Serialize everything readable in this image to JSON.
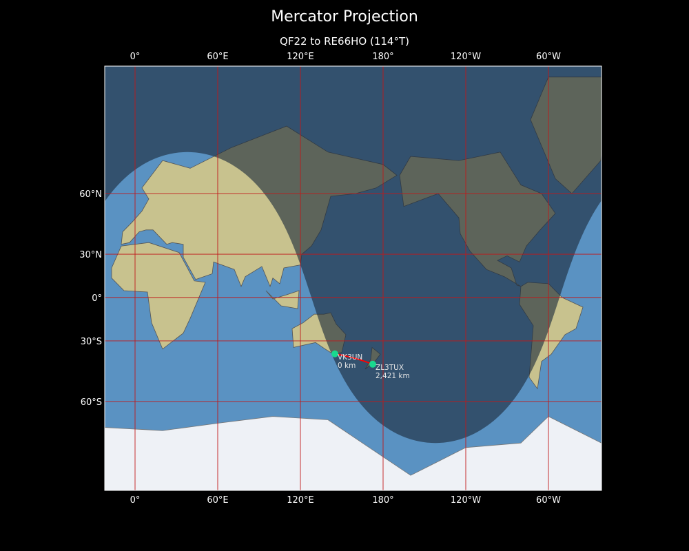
{
  "title": "Mercator Projection",
  "subtitle": "QF22 to RE66HO (114°T)",
  "lon_ticks": [
    {
      "lon": 0,
      "label": "0°"
    },
    {
      "lon": 60,
      "label": "60°E"
    },
    {
      "lon": 120,
      "label": "120°E"
    },
    {
      "lon": 180,
      "label": "180°"
    },
    {
      "lon": 240,
      "label": "120°W"
    },
    {
      "lon": 300,
      "label": "60°W"
    }
  ],
  "lat_ticks": [
    {
      "lat": 60,
      "label": "60°N"
    },
    {
      "lat": 30,
      "label": "30°N"
    },
    {
      "lat": 0,
      "label": "0°"
    },
    {
      "lat": -30,
      "label": "30°S"
    },
    {
      "lat": -60,
      "label": "60°S"
    }
  ],
  "stations": [
    {
      "call": "VK3UN",
      "distance": "0 km",
      "lon": 145,
      "lat": -37.8
    },
    {
      "call": "ZL3TUX",
      "distance": "2,421 km",
      "lon": 172.5,
      "lat": -43.5
    }
  ],
  "colors": {
    "ocean": "#5a92c2",
    "land": "#c8c28e",
    "ice": "#eef1f6",
    "night": "#1c2a3a",
    "grid": "#c0181a",
    "path": "#ff0000",
    "station": "#19d98f"
  }
}
